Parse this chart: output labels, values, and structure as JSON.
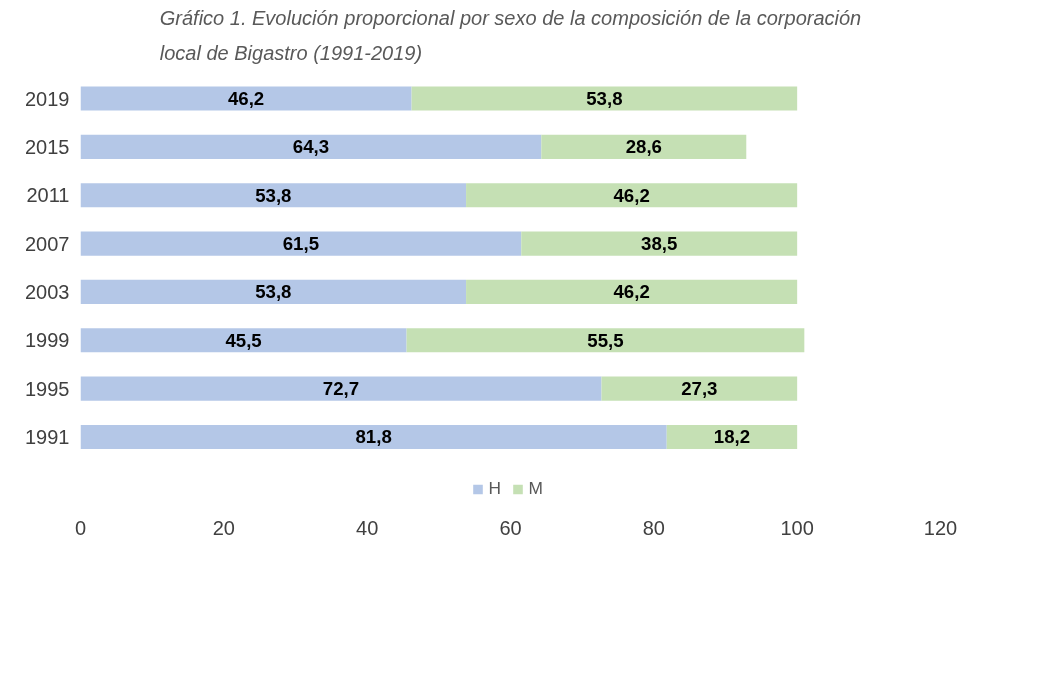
{
  "chart_data": {
    "type": "bar",
    "orientation": "horizontal",
    "stacked": true,
    "title": "Gráfico 1. Evolución proporcional por sexo de la composición de la corporación local de Bigastro (1991-2019)",
    "categories": [
      "2019",
      "2015",
      "2011",
      "2007",
      "2003",
      "1999",
      "1995",
      "1991"
    ],
    "series": [
      {
        "name": "H",
        "color": "#b4c7e7",
        "values": [
          46.2,
          64.3,
          53.8,
          61.5,
          53.8,
          45.5,
          72.7,
          81.8
        ],
        "value_labels": [
          "46,2",
          "64,3",
          "53,8",
          "61,5",
          "53,8",
          "45,5",
          "72,7",
          "81,8"
        ]
      },
      {
        "name": "M",
        "color": "#c5e0b4",
        "values": [
          53.8,
          28.6,
          46.2,
          38.5,
          46.2,
          55.5,
          27.3,
          18.2
        ],
        "value_labels": [
          "53,8",
          "28,6",
          "46,2",
          "38,5",
          "46,2",
          "55,5",
          "27,3",
          "18,2"
        ]
      }
    ],
    "xlim": [
      0,
      120
    ],
    "xticks": [
      0,
      20,
      40,
      60,
      80,
      100,
      120
    ],
    "grid": false,
    "legend": "bottom"
  }
}
